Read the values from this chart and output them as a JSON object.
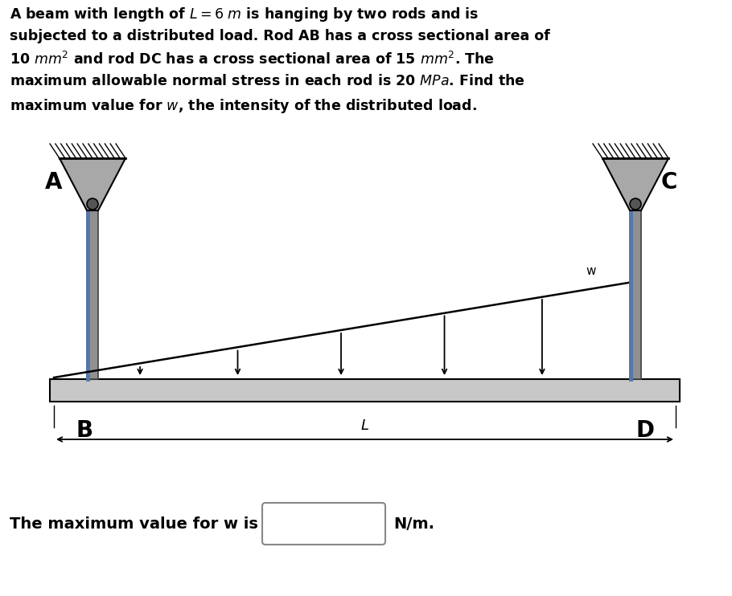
{
  "bg_color": "#ffffff",
  "text_color": "#000000",
  "rod_color": "#909090",
  "rod_edge_color": "#404040",
  "beam_color": "#c8c8c8",
  "beam_edge_color": "#000000",
  "support_color": "#a8a8a8",
  "support_edge_color": "#000000",
  "blue_highlight": "#5577aa",
  "title_lines": [
    [
      "A beam with length of ",
      "$L = 6\\ m$",
      " is hanging by two rods and is"
    ],
    [
      "subjected to a distributed load. Rod AB has a cross sectional area of"
    ],
    [
      "10 ",
      "$mm^2$",
      " and rod DC has a cross sectional area of 15 ",
      "$mm^2$",
      ". The"
    ],
    [
      "maximum allowable normal stress in each rod is 20 ",
      "$MPa$",
      ". Find the"
    ],
    [
      "maximum value for ",
      "$w$",
      ", the intensity of the distributed load."
    ]
  ],
  "label_A": "A",
  "label_B": "B",
  "label_C": "C",
  "label_D": "D",
  "label_w": "w",
  "label_L": "L",
  "answer_text": "The maximum value for w is",
  "answer_unit": "N/m.",
  "figsize": [
    9.1,
    7.42
  ],
  "dpi": 100
}
